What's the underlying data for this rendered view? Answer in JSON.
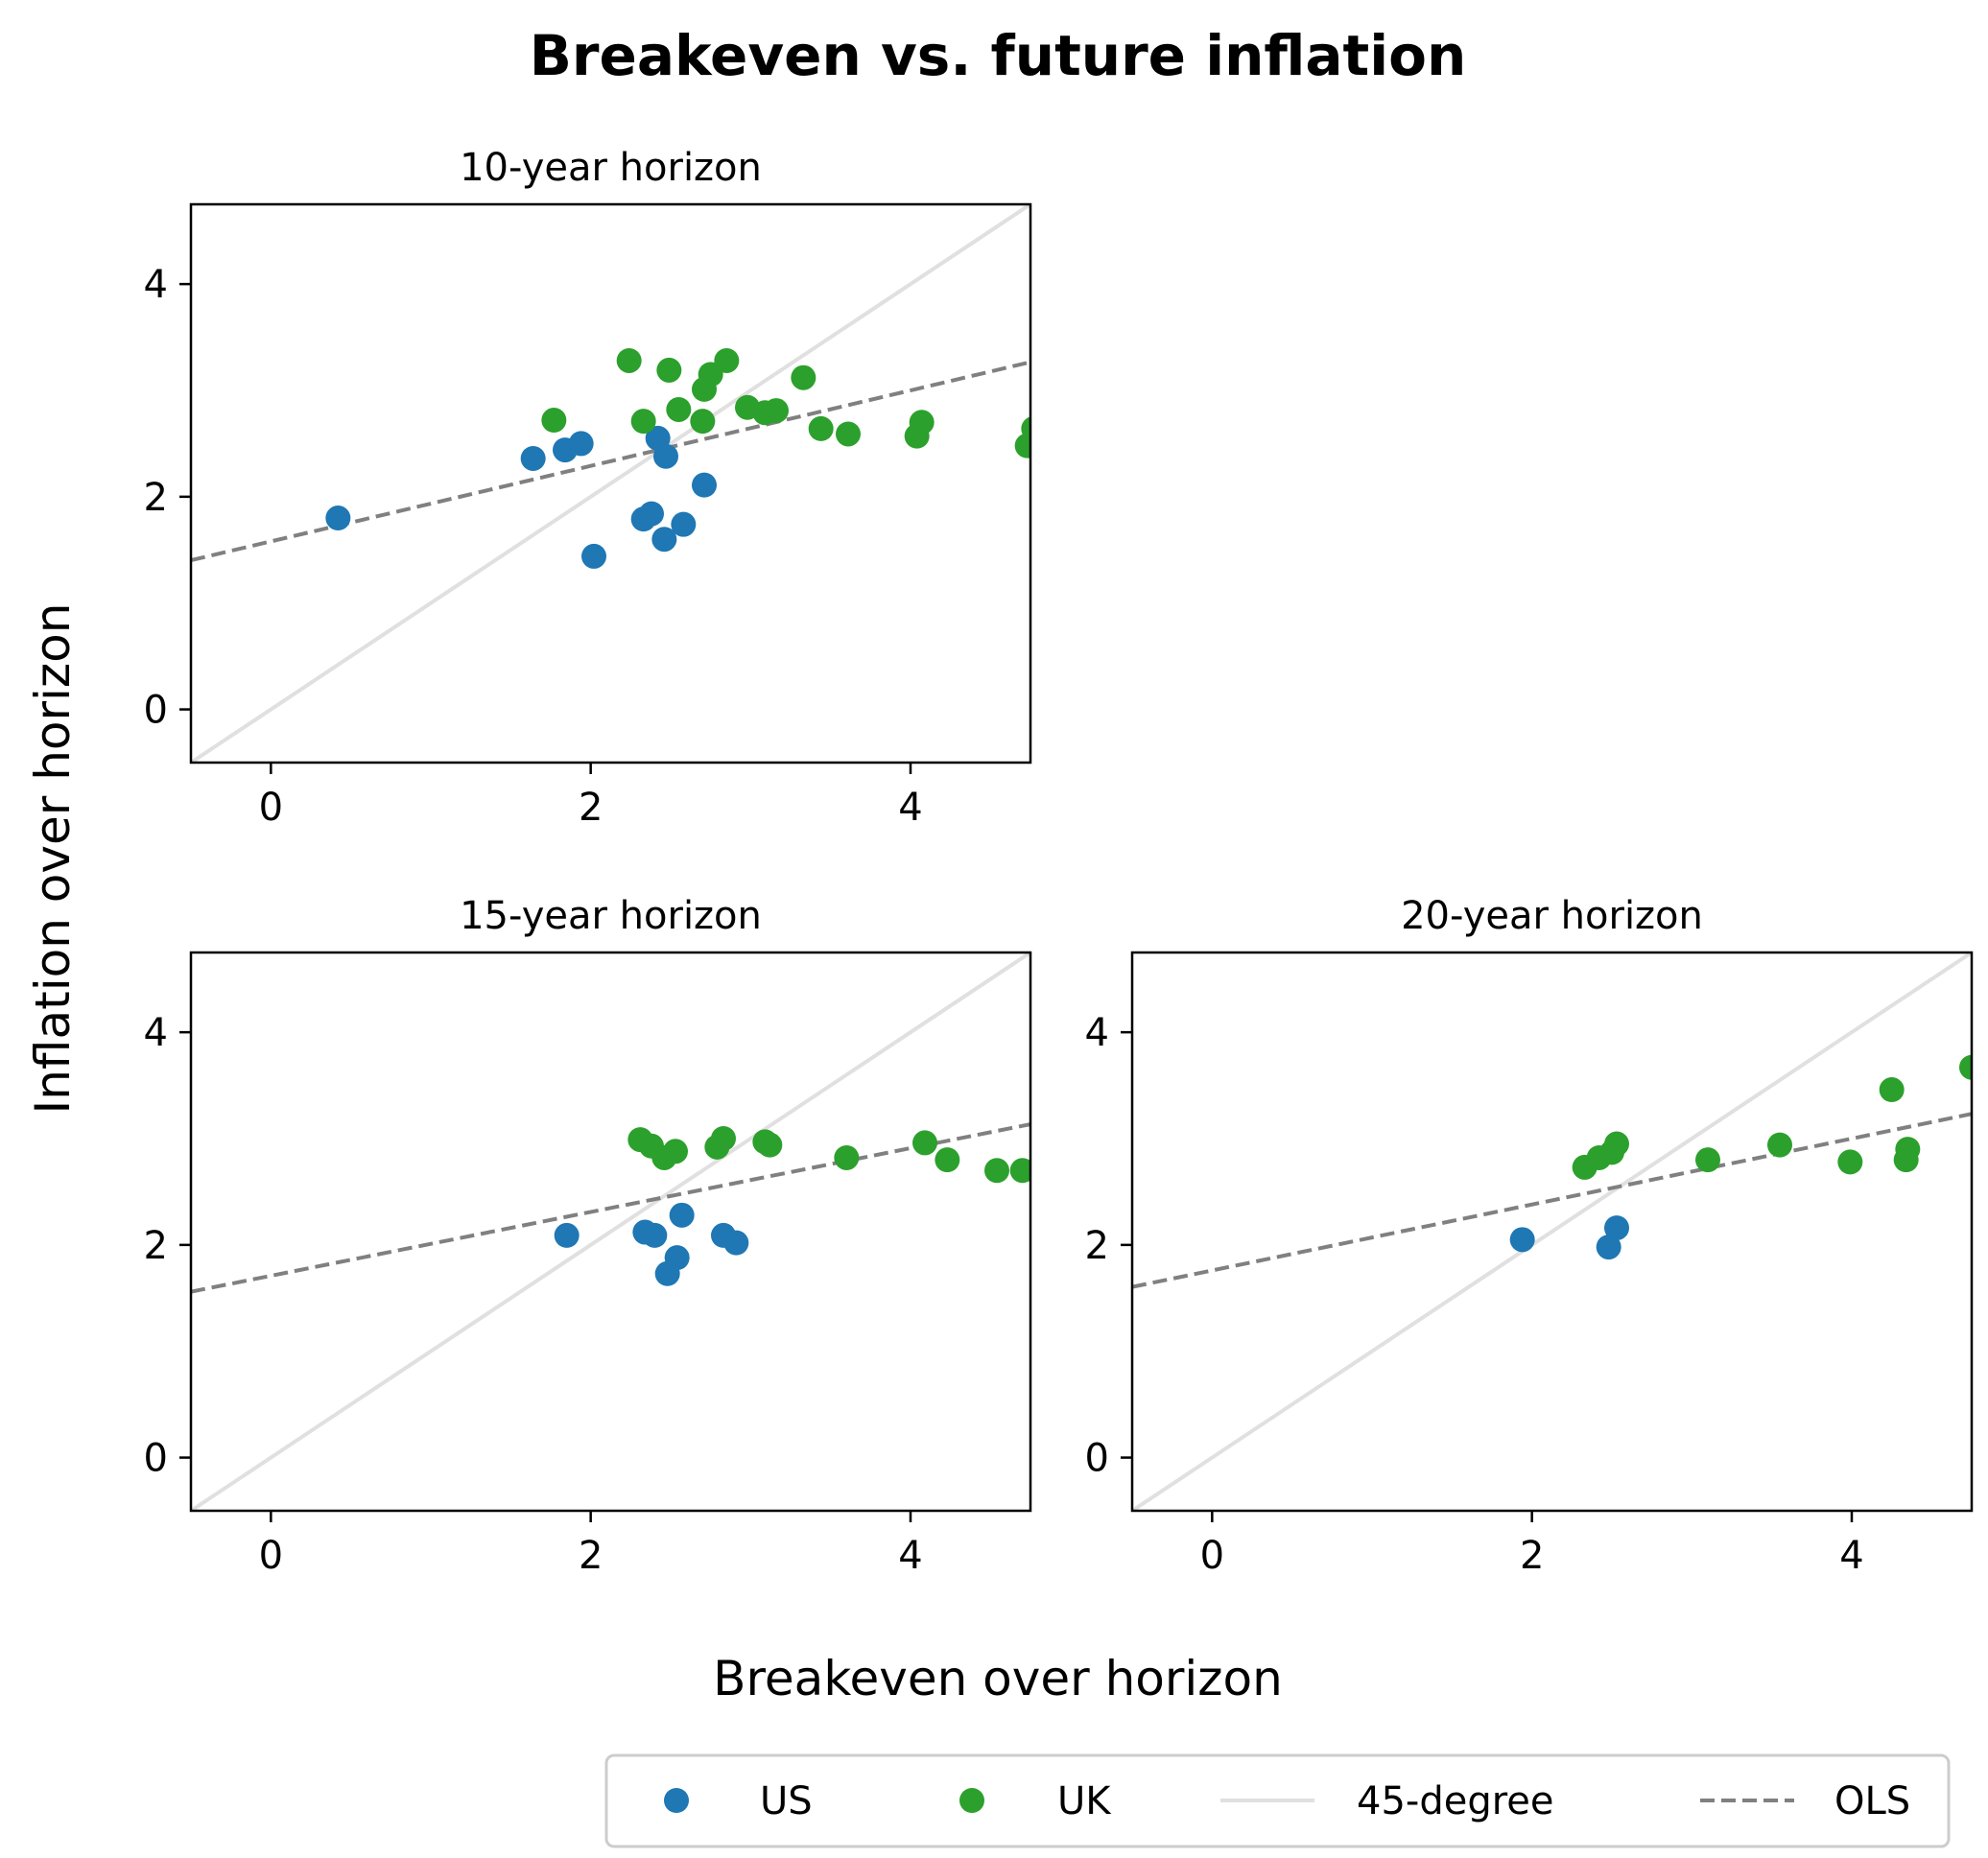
{
  "title": "Breakeven vs. future inflation",
  "xlabel": "Breakeven over horizon",
  "ylabel": "Inflation over horizon",
  "colors": {
    "US": "#1f77b4",
    "UK": "#2ca02c",
    "forty_five": "#e0e0e0",
    "ols": "#808080"
  },
  "legend": {
    "placement": "bottom-right",
    "items": [
      {
        "key": "US",
        "label": "US",
        "marker": "dot"
      },
      {
        "key": "UK",
        "label": "UK",
        "marker": "dot"
      },
      {
        "key": "forty_five",
        "label": "45-degree",
        "marker": "solid-line"
      },
      {
        "key": "ols",
        "label": "OLS",
        "marker": "dashed-line"
      }
    ]
  },
  "chart_data": [
    {
      "type": "scatter",
      "title": "10-year horizon",
      "xlim": [
        -0.5,
        4.75
      ],
      "ylim": [
        -0.5,
        4.75
      ],
      "xticks": [
        0,
        2,
        4
      ],
      "yticks": [
        0,
        2,
        4
      ],
      "ols": {
        "intercept": 1.58,
        "slope": 0.355
      },
      "series": [
        {
          "name": "US",
          "points": [
            [
              0.42,
              1.8
            ],
            [
              1.64,
              2.36
            ],
            [
              1.84,
              2.44
            ],
            [
              1.94,
              2.5
            ],
            [
              2.02,
              1.44
            ],
            [
              2.33,
              1.79
            ],
            [
              2.38,
              1.84
            ],
            [
              2.42,
              2.55
            ],
            [
              2.46,
              1.6
            ],
            [
              2.47,
              2.38
            ],
            [
              2.58,
              1.74
            ],
            [
              2.71,
              2.11
            ]
          ]
        },
        {
          "name": "UK",
          "points": [
            [
              1.77,
              2.72
            ],
            [
              2.24,
              3.28
            ],
            [
              2.33,
              2.71
            ],
            [
              2.49,
              3.19
            ],
            [
              2.55,
              2.82
            ],
            [
              2.7,
              2.71
            ],
            [
              2.71,
              3.01
            ],
            [
              2.75,
              3.15
            ],
            [
              2.85,
              3.28
            ],
            [
              2.98,
              2.84
            ],
            [
              3.09,
              2.79
            ],
            [
              3.16,
              2.81
            ],
            [
              3.33,
              3.12
            ],
            [
              3.44,
              2.64
            ],
            [
              3.61,
              2.59
            ],
            [
              4.04,
              2.57
            ],
            [
              4.07,
              2.7
            ],
            [
              4.73,
              2.48
            ],
            [
              4.77,
              2.64
            ]
          ]
        }
      ]
    },
    {
      "type": "scatter",
      "title": "15-year horizon",
      "xlim": [
        -0.5,
        4.75
      ],
      "ylim": [
        -0.5,
        4.75
      ],
      "xticks": [
        0,
        2,
        4
      ],
      "yticks": [
        0,
        2,
        4
      ],
      "ols": {
        "intercept": 1.71,
        "slope": 0.3
      },
      "series": [
        {
          "name": "US",
          "points": [
            [
              1.85,
              2.09
            ],
            [
              2.34,
              2.12
            ],
            [
              2.4,
              2.09
            ],
            [
              2.48,
              1.73
            ],
            [
              2.54,
              1.88
            ],
            [
              2.57,
              2.28
            ],
            [
              2.83,
              2.09
            ],
            [
              2.91,
              2.02
            ]
          ]
        },
        {
          "name": "UK",
          "points": [
            [
              2.31,
              2.99
            ],
            [
              2.38,
              2.93
            ],
            [
              2.46,
              2.82
            ],
            [
              2.53,
              2.88
            ],
            [
              2.79,
              2.92
            ],
            [
              2.83,
              3.0
            ],
            [
              3.09,
              2.97
            ],
            [
              3.12,
              2.94
            ],
            [
              3.6,
              2.82
            ],
            [
              4.09,
              2.96
            ],
            [
              4.23,
              2.8
            ],
            [
              4.54,
              2.7
            ],
            [
              4.7,
              2.7
            ]
          ]
        }
      ]
    },
    {
      "type": "scatter",
      "title": "20-year horizon",
      "xlim": [
        -0.5,
        4.75
      ],
      "ylim": [
        -0.5,
        4.75
      ],
      "xticks": [
        0,
        2,
        4
      ],
      "yticks": [
        0,
        2,
        4
      ],
      "ols": {
        "intercept": 1.76,
        "slope": 0.31
      },
      "series": [
        {
          "name": "US",
          "points": [
            [
              1.94,
              2.05
            ],
            [
              2.48,
              1.98
            ],
            [
              2.53,
              2.16
            ]
          ]
        },
        {
          "name": "UK",
          "points": [
            [
              2.33,
              2.73
            ],
            [
              2.42,
              2.82
            ],
            [
              2.5,
              2.87
            ],
            [
              2.53,
              2.95
            ],
            [
              3.1,
              2.8
            ],
            [
              3.55,
              2.94
            ],
            [
              3.99,
              2.78
            ],
            [
              4.25,
              3.46
            ],
            [
              4.34,
              2.8
            ],
            [
              4.35,
              2.9
            ],
            [
              4.75,
              3.67
            ]
          ]
        }
      ]
    }
  ]
}
